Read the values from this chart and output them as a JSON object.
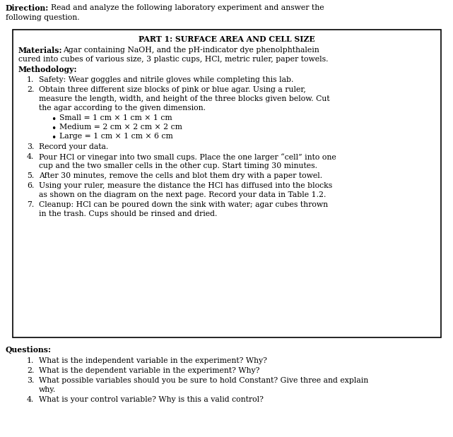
{
  "bg_color": "#ffffff",
  "fig_width": 6.41,
  "fig_height": 6.19,
  "dpi": 100,
  "font_family": "DejaVu Serif",
  "base_size": 7.8,
  "direction_bold": "Direction:",
  "box_title": "PART 1: SURFACE AREA AND CELL SIZE",
  "materials_bold": "Materials:",
  "methodology_bold": "Methodology:",
  "steps_1": "Safety: Wear goggles and nitrile gloves while completing this lab.",
  "steps_2a": "Obtain three different size blocks of pink or blue agar. Using a ruler,",
  "steps_2b": "measure the length, width, and height of the three blocks given below. Cut",
  "steps_2c": "the agar according to the given dimension.",
  "bullet1": "Small = 1 cm × 1 cm × 1 cm",
  "bullet2": "Medium = 2 cm × 2 cm × 2 cm",
  "bullet3": "Large = 1 cm × 1 cm × 6 cm",
  "steps_3": "Record your data.",
  "steps_4a": "Pour HCl or vinegar into two small cups. Place the one larger “cell” into one",
  "steps_4b": "cup and the two smaller cells in the other cup. Start timing 30 minutes.",
  "steps_5": "After 30 minutes, remove the cells and blot them dry with a paper towel.",
  "steps_6a": "Using your ruler, measure the distance the HCl has diffused into the blocks",
  "steps_6b": "as shown on the diagram on the next page. Record your data in Table 1.2.",
  "steps_7a": "Cleanup: HCl can be poured down the sink with water; agar cubes thrown",
  "steps_7b": "in the trash. Cups should be rinsed and dried.",
  "questions_bold": "Questions:",
  "q1": "What is the independent variable in the experiment? Why?",
  "q2": "What is the dependent variable in the experiment? Why?",
  "q3a": "What possible variables should you be sure to hold Constant? Give three and explain",
  "q3b": "why.",
  "q4": "What is your control variable? Why is this a valid control?"
}
